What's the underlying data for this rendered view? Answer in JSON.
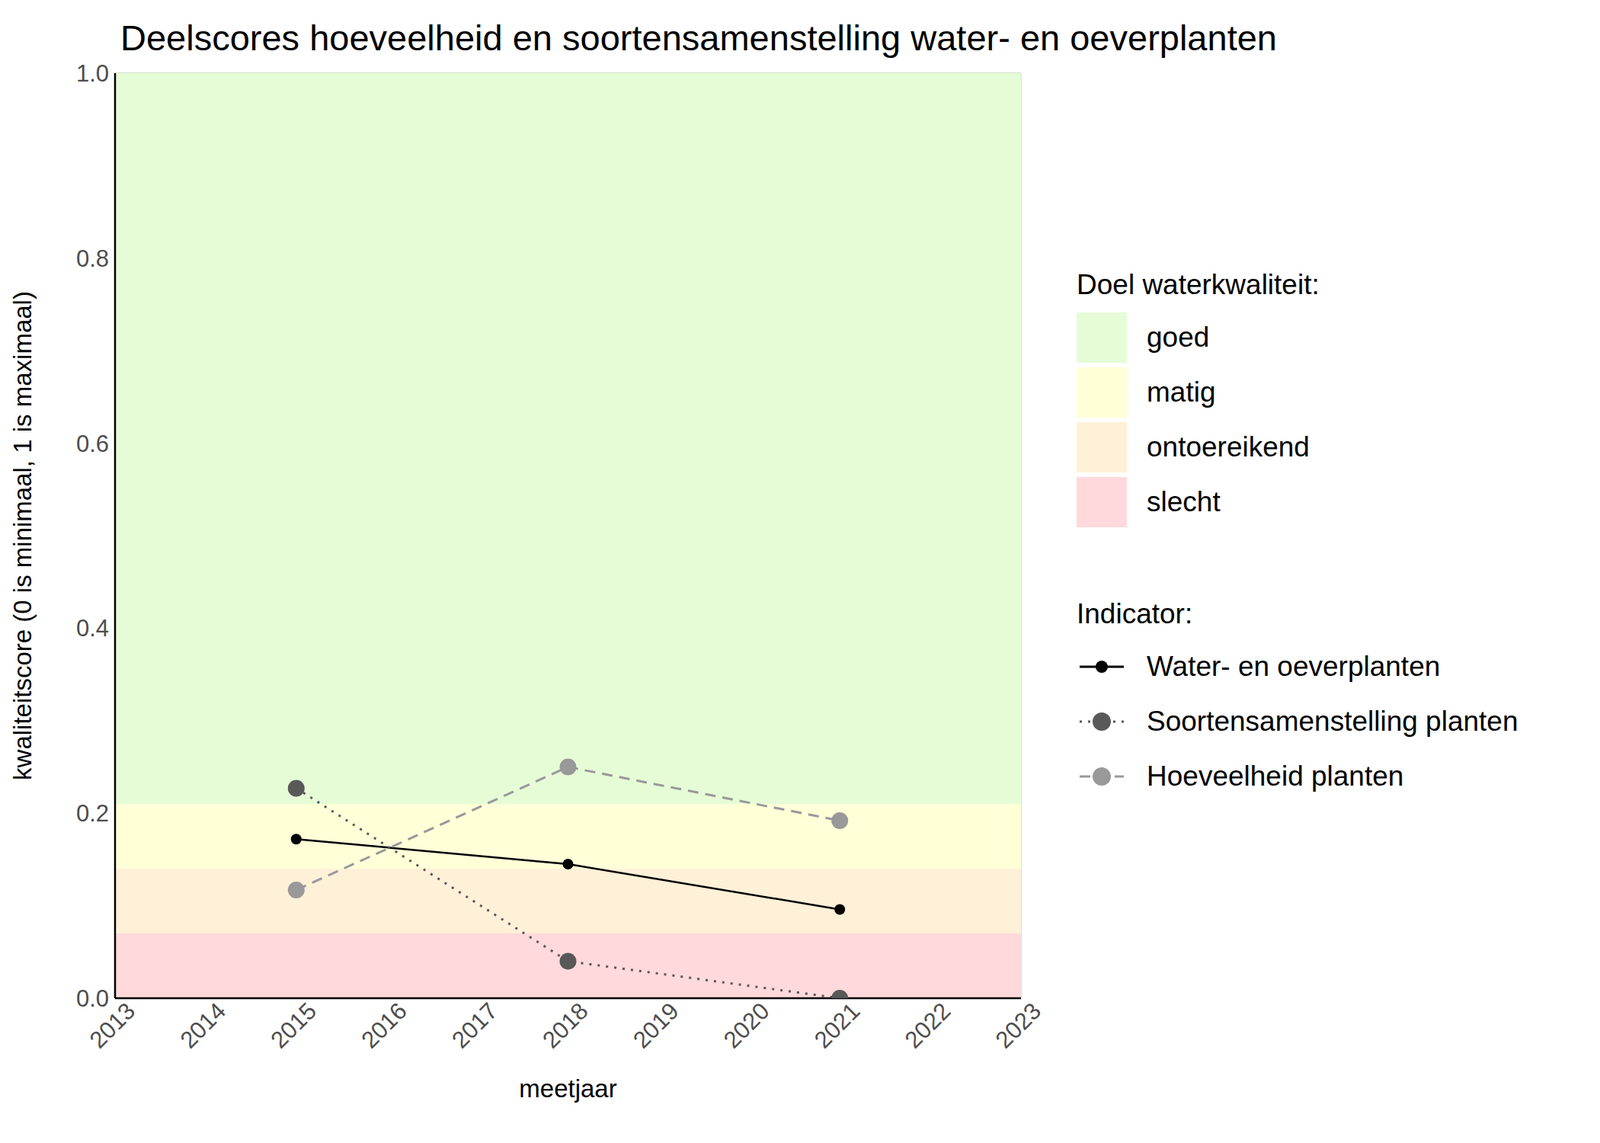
{
  "chart_data": {
    "type": "line",
    "title": "Deelscores hoeveelheid en soortensamenstelling water- en oeverplanten",
    "x_label": "meetjaar",
    "y_label": "kwaliteitscore (0 is minimaal, 1 is maximaal)",
    "x": [
      2015,
      2018,
      2021
    ],
    "series": [
      {
        "name": "Water- en oeverplanten",
        "color": "#000000",
        "marker": "small_circle",
        "line_style": "solid",
        "values": [
          0.172,
          0.145,
          0.096
        ]
      },
      {
        "name": "Soortensamenstelling planten",
        "color": "#595959",
        "marker": "circle",
        "line_style": "dotted",
        "values": [
          0.227,
          0.04,
          0.0
        ]
      },
      {
        "name": "Hoeveelheid planten",
        "color": "#999999",
        "marker": "circle",
        "line_style": "dashed",
        "values": [
          0.117,
          0.25,
          0.192
        ]
      }
    ],
    "xlim": [
      2013,
      2023
    ],
    "xticks": [
      2013,
      2014,
      2015,
      2016,
      2017,
      2018,
      2019,
      2020,
      2021,
      2022,
      2023
    ],
    "ylim": [
      0,
      1
    ],
    "yticks": [
      {
        "value": 0,
        "label": "0.0"
      },
      {
        "value": 0.2,
        "label": "0.2"
      },
      {
        "value": 0.4,
        "label": "0.4"
      },
      {
        "value": 0.6,
        "label": "0.6"
      },
      {
        "value": 0.8,
        "label": "0.8"
      },
      {
        "value": 1,
        "label": "1.0"
      }
    ],
    "grid": true,
    "legend": "right",
    "band_legend_title": "Doel waterkwaliteit:",
    "series_legend_title": "Indicator:",
    "bands": [
      {
        "name": "goed",
        "from": 0.21,
        "to": 1,
        "color": "#e6fcd7"
      },
      {
        "name": "matig",
        "from": 0.14,
        "to": 0.21,
        "color": "#ffffd8"
      },
      {
        "name": "ontoereikend",
        "from": 0.07,
        "to": 0.14,
        "color": "#fff0d8"
      },
      {
        "name": "slecht",
        "from": 0,
        "to": 0.07,
        "color": "#ffd9db"
      }
    ]
  }
}
